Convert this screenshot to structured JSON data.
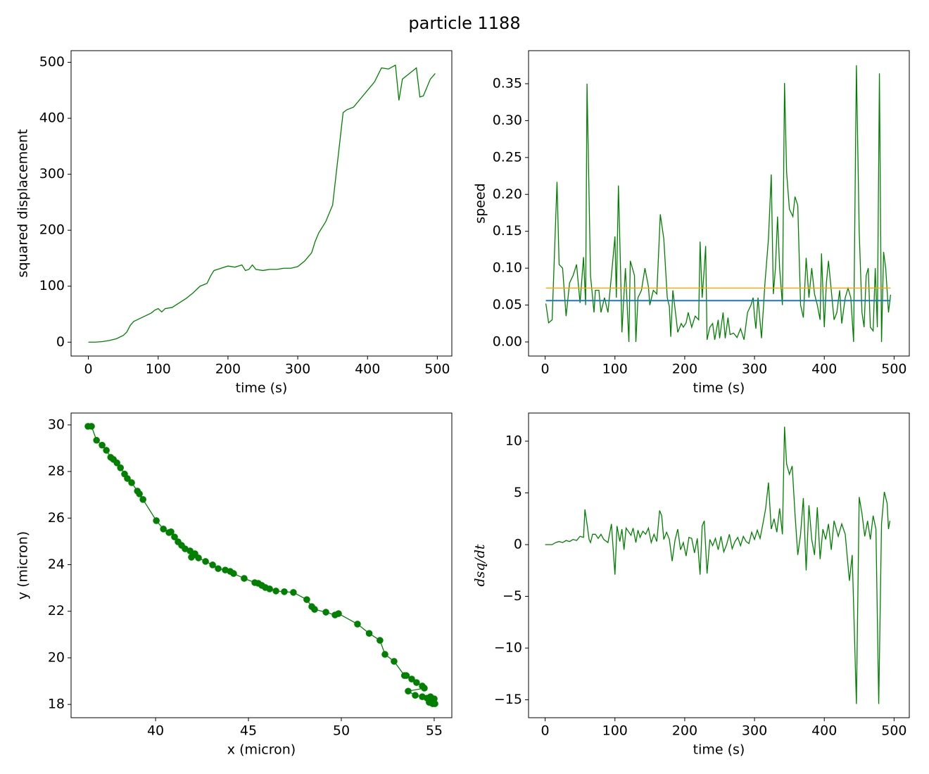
{
  "title": "particle 1188",
  "chart_data": [
    {
      "type": "line",
      "xlabel": "time (s)",
      "ylabel": "squared displacement",
      "x": [
        0,
        10,
        20,
        30,
        40,
        50,
        55,
        60,
        65,
        70,
        80,
        90,
        95,
        100,
        105,
        110,
        120,
        130,
        140,
        150,
        160,
        170,
        175,
        180,
        190,
        200,
        210,
        220,
        225,
        230,
        235,
        240,
        250,
        260,
        270,
        280,
        290,
        300,
        310,
        320,
        325,
        330,
        340,
        350,
        355,
        360,
        365,
        370,
        380,
        390,
        400,
        410,
        420,
        430,
        440,
        445,
        450,
        460,
        470,
        475,
        480,
        490,
        497
      ],
      "series": [
        {
          "color": "green",
          "values": [
            0,
            0,
            1,
            3,
            6,
            12,
            18,
            30,
            37,
            40,
            46,
            52,
            57,
            60,
            54,
            60,
            62,
            70,
            78,
            88,
            100,
            105,
            118,
            128,
            132,
            136,
            134,
            138,
            128,
            130,
            138,
            130,
            128,
            130,
            130,
            132,
            132,
            135,
            145,
            160,
            180,
            195,
            215,
            245,
            300,
            355,
            410,
            415,
            420,
            435,
            450,
            465,
            490,
            488,
            495,
            432,
            470,
            480,
            490,
            438,
            440,
            470,
            480
          ]
        }
      ],
      "xlim": [
        -24.8,
        520.8
      ],
      "ylim": [
        -24.8,
        520.8
      ],
      "xticks": [
        0,
        100,
        200,
        300,
        400,
        500
      ],
      "yticks": [
        0,
        100,
        200,
        300,
        400,
        500
      ]
    },
    {
      "type": "line",
      "xlabel": "time (s)",
      "ylabel": "speed",
      "x": [
        1,
        5,
        10,
        17,
        20,
        25,
        30,
        35,
        40,
        45,
        50,
        55,
        58,
        60,
        65,
        70,
        72,
        77,
        80,
        85,
        90,
        95,
        100,
        102,
        105,
        108,
        110,
        115,
        120,
        122,
        128,
        130,
        133,
        138,
        143,
        148,
        150,
        155,
        160,
        165,
        170,
        175,
        178,
        180,
        183,
        188,
        190,
        195,
        198,
        202,
        205,
        210,
        215,
        220,
        222,
        225,
        228,
        230,
        232,
        236,
        240,
        243,
        248,
        250,
        255,
        258,
        262,
        265,
        270,
        275,
        280,
        285,
        290,
        295,
        298,
        300,
        302,
        305,
        310,
        315,
        320,
        324,
        327,
        330,
        333,
        336,
        340,
        343,
        346,
        350,
        355,
        358,
        362,
        366,
        370,
        374,
        378,
        382,
        386,
        390,
        394,
        396,
        400,
        403,
        406,
        410,
        414,
        418,
        422,
        425,
        430,
        434,
        438,
        442,
        446,
        450,
        454,
        457,
        460,
        463,
        466,
        470,
        473,
        476,
        479,
        482,
        485,
        488,
        492,
        495
      ],
      "series": [
        {
          "color": "green",
          "values": [
            0.052,
            0.026,
            0.03,
            0.217,
            0.105,
            0.1,
            0.035,
            0.08,
            0.09,
            0.105,
            0.053,
            0.115,
            0.05,
            0.35,
            0.09,
            0.04,
            0.07,
            0.07,
            0.04,
            0.06,
            0.04,
            0.09,
            0.143,
            0.06,
            0.212,
            0.1,
            0.013,
            0.1,
            0,
            0.11,
            0.09,
            0,
            0.06,
            0.07,
            0.1,
            0.075,
            0.05,
            0.07,
            0.065,
            0.173,
            0.14,
            0.06,
            0.048,
            0.007,
            0.07,
            0.03,
            0.013,
            0.025,
            0.02,
            0.026,
            0.04,
            0.02,
            0.035,
            0.03,
            0.136,
            0.06,
            0.1,
            0.13,
            0.003,
            0.02,
            0.025,
            0.003,
            0.03,
            0.005,
            0.04,
            0.005,
            0.033,
            0.01,
            0.012,
            0.006,
            0.018,
            0.003,
            0.04,
            0.05,
            0.06,
            0.035,
            0.018,
            0.06,
            0.005,
            0.08,
            0.14,
            0.227,
            0.065,
            0.1,
            0.17,
            0.1,
            0.05,
            0.351,
            0.23,
            0.18,
            0.17,
            0.197,
            0.185,
            0.05,
            0.033,
            0.114,
            0.06,
            0.1,
            0.065,
            0.05,
            0.03,
            0.12,
            0.02,
            0.08,
            0.11,
            0.07,
            0.03,
            0.04,
            0.07,
            0.025,
            0.06,
            0.073,
            0.06,
            0,
            0.375,
            0.15,
            0.04,
            0.02,
            0.09,
            0.1,
            0.02,
            0.015,
            0.1,
            0.02,
            0.364,
            0,
            0.122,
            0.1,
            0.04,
            0.064
          ]
        }
      ],
      "hlines": [
        {
          "value": 0.073,
          "color": "orange"
        },
        {
          "value": 0.056,
          "color": "#1f77b4"
        }
      ],
      "xlim": [
        -23.8,
        521.8
      ],
      "ylim": [
        -0.0191,
        0.3948
      ],
      "xticks": [
        0,
        100,
        200,
        300,
        400,
        500
      ],
      "yticks": [
        {
          "value": 0,
          "label": "0.00"
        },
        {
          "value": 0.05,
          "label": "0.05"
        },
        {
          "value": 0.1,
          "label": "0.10"
        },
        {
          "value": 0.15,
          "label": "0.15"
        },
        {
          "value": 0.2,
          "label": "0.20"
        },
        {
          "value": 0.25,
          "label": "0.25"
        },
        {
          "value": 0.3,
          "label": "0.30"
        },
        {
          "value": 0.35,
          "label": "0.35"
        }
      ]
    },
    {
      "type": "scatter",
      "xlabel": "x (micron)",
      "ylabel": "y (micron)",
      "line": true,
      "x": [
        36.36,
        36.55,
        36.82,
        37.12,
        37.35,
        37.58,
        37.73,
        37.92,
        38.11,
        38.33,
        38.48,
        38.71,
        39.02,
        39.13,
        39.32,
        40.04,
        40.42,
        40.72,
        40.83,
        41.02,
        41.21,
        41.4,
        41.59,
        41.86,
        42.12,
        41.93,
        42.31,
        42.69,
        43.07,
        43.37,
        43.75,
        44.02,
        44.2,
        44.77,
        45.34,
        45.53,
        45.72,
        45.91,
        46.14,
        46.48,
        46.93,
        47.42,
        48.14,
        48.41,
        48.56,
        49.17,
        49.66,
        49.85,
        50.87,
        51.5,
        52.08,
        52.35,
        52.84,
        53.4,
        53.5,
        53.79,
        54.05,
        54.36,
        54.47,
        53.6,
        53.98,
        54.36,
        54.62,
        54.8,
        55.0,
        54.73,
        54.92,
        55.04
      ],
      "series": [
        {
          "color": "green",
          "values": [
            29.94,
            29.94,
            29.34,
            29.13,
            28.91,
            28.61,
            28.52,
            28.37,
            28.16,
            27.89,
            27.7,
            27.52,
            27.16,
            27.04,
            26.8,
            25.89,
            25.53,
            25.38,
            25.41,
            25.19,
            24.98,
            24.83,
            24.68,
            24.59,
            24.47,
            24.32,
            24.29,
            24.14,
            23.99,
            23.83,
            23.77,
            23.71,
            23.62,
            23.41,
            23.23,
            23.2,
            23.11,
            23.02,
            22.96,
            22.87,
            22.84,
            22.81,
            22.5,
            22.2,
            22.08,
            21.96,
            21.84,
            21.9,
            21.45,
            21.05,
            20.75,
            20.15,
            19.85,
            19.24,
            19.24,
            19.09,
            18.94,
            18.79,
            18.7,
            18.57,
            18.39,
            18.33,
            18.27,
            18.33,
            18.24,
            18.09,
            18.03,
            18.03
          ]
        }
      ],
      "xlim": [
        35.45,
        55.95
      ],
      "ylim": [
        17.43,
        30.51
      ],
      "xticks": [
        40,
        45,
        50,
        55
      ],
      "yticks": [
        18,
        20,
        22,
        24,
        26,
        28,
        30
      ]
    },
    {
      "type": "line",
      "xlabel": "time (s)",
      "ylabel": "dsq/dt",
      "x": [
        0,
        10,
        15,
        20,
        25,
        30,
        35,
        40,
        45,
        50,
        55,
        57,
        60,
        63,
        65,
        68,
        72,
        76,
        80,
        84,
        90,
        95,
        100,
        103,
        107,
        110,
        113,
        116,
        120,
        123,
        126,
        130,
        133,
        136,
        140,
        144,
        148,
        152,
        156,
        160,
        164,
        167,
        170,
        174,
        178,
        182,
        186,
        190,
        194,
        198,
        202,
        206,
        210,
        214,
        218,
        222,
        225,
        228,
        232,
        236,
        240,
        244,
        248,
        252,
        256,
        260,
        264,
        268,
        272,
        276,
        280,
        284,
        288,
        292,
        296,
        300,
        304,
        308,
        312,
        316,
        320,
        324,
        328,
        332,
        336,
        340,
        343,
        346,
        350,
        354,
        358,
        362,
        366,
        370,
        374,
        378,
        382,
        386,
        390,
        394,
        398,
        402,
        406,
        410,
        414,
        420,
        425,
        430,
        436,
        440,
        446,
        450,
        454,
        458,
        462,
        466,
        470,
        474,
        478,
        482,
        486,
        490,
        492,
        494
      ],
      "series": [
        {
          "color": "green",
          "values": [
            0,
            0,
            0.2,
            0.3,
            0.2,
            0.4,
            0.3,
            0.5,
            0.4,
            0.8,
            0.7,
            3.4,
            2,
            0.5,
            0.2,
            1,
            1,
            0.6,
            1,
            0.5,
            0.2,
            2,
            -2.9,
            1.8,
            0.3,
            1.5,
            -0.5,
            1.6,
            1.2,
            0.9,
            1.6,
            0.2,
            1.4,
            0.7,
            1.3,
            1,
            1.6,
            0.2,
            1,
            0.3,
            3.3,
            2.8,
            0.5,
            1.2,
            0.5,
            -1.6,
            0.4,
            1.5,
            -0.5,
            0.2,
            -1.1,
            0.7,
            0.6,
            -0.8,
            0.6,
            -2.9,
            1.8,
            2.3,
            -2.8,
            0.5,
            -0.1,
            0.6,
            -0.5,
            0.8,
            -0.7,
            0,
            1,
            -0.4,
            0.3,
            0.7,
            -0.1,
            0.8,
            0.3,
            0.1,
            1.2,
            0.5,
            1.4,
            0.6,
            2,
            3.5,
            6,
            1.5,
            2.5,
            1.2,
            3.5,
            1,
            11.4,
            7.8,
            6.8,
            7.6,
            3,
            -1,
            1,
            4.5,
            -2.5,
            3.8,
            0.5,
            -1,
            3.6,
            -1.4,
            1.5,
            0.5,
            2,
            -0.5,
            2.3,
            0.8,
            2,
            1,
            -3.5,
            -1,
            -15.4,
            4.6,
            3,
            0.8,
            2.3,
            0.5,
            2.8,
            1.5,
            -15.4,
            2,
            5.1,
            4,
            1.5,
            2.3
          ]
        }
      ],
      "xlim": [
        -23.8,
        521.8
      ],
      "ylim": [
        -16.73,
        12.72
      ],
      "xticks": [
        0,
        100,
        200,
        300,
        400,
        500
      ],
      "yticks": [
        {
          "value": -15,
          "label": "−15"
        },
        {
          "value": -10,
          "label": "−10"
        },
        {
          "value": -5,
          "label": "−5"
        },
        0,
        5,
        10
      ]
    }
  ]
}
